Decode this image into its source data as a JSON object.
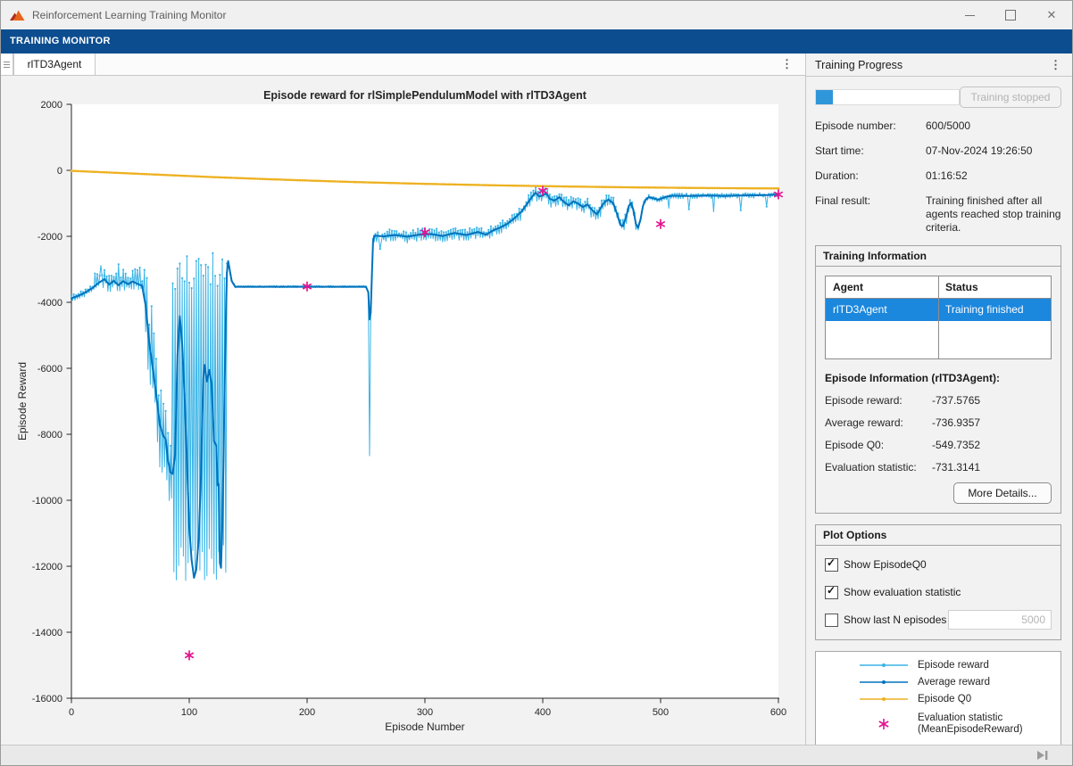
{
  "window": {
    "title": "Reinforcement Learning Training Monitor",
    "close_glyph": "✕"
  },
  "toolstrip": {
    "label": "TRAINING MONITOR"
  },
  "doc_tabs": {
    "active": "rlTD3Agent",
    "menu_icon": "⋮"
  },
  "right_panel": {
    "title": "Training Progress",
    "menu_icon": "⋮",
    "progress": {
      "fraction": 0.12,
      "button_label": "Training stopped"
    },
    "run_info": [
      {
        "label": "Episode number:",
        "value": "600/5000"
      },
      {
        "label": "Start time:",
        "value": "07-Nov-2024 19:26:50"
      },
      {
        "label": "Duration:",
        "value": "01:16:52"
      },
      {
        "label": "Final result:",
        "value": "Training finished after all agents reached stop training criteria."
      }
    ]
  },
  "training_information": {
    "header": "Training Information",
    "table": {
      "columns": [
        "Agent",
        "Status"
      ],
      "rows": [
        {
          "agent": "rlTD3Agent",
          "status": "Training finished",
          "selected": true
        }
      ]
    },
    "episode_info_header": "Episode Information (rlTD3Agent):",
    "episode_info": [
      {
        "label": "Episode reward:",
        "value": "-737.5765"
      },
      {
        "label": "Average reward:",
        "value": "-736.9357"
      },
      {
        "label": "Episode Q0:",
        "value": "-549.7352"
      },
      {
        "label": "Evaluation statistic:",
        "value": "-731.3141"
      }
    ],
    "more_details_label": "More Details..."
  },
  "plot_options": {
    "header": "Plot Options",
    "options": [
      {
        "label": "Show EpisodeQ0",
        "checked": true
      },
      {
        "label": "Show evaluation statistic",
        "checked": true
      },
      {
        "label": "Show last N episodes",
        "checked": false,
        "input_value": "5000"
      }
    ]
  },
  "legend": {
    "entries": [
      {
        "label": "Episode reward",
        "marker": "line-dot",
        "color": "#3ab4e6"
      },
      {
        "label": "Average reward",
        "marker": "line-dot",
        "color": "#0072BD"
      },
      {
        "label": "Episode Q0",
        "marker": "line-dot",
        "color": "#EDB120"
      },
      {
        "label": "Evaluation statistic",
        "label2": "(MeanEpisodeReward)",
        "marker": "asterisk",
        "color": "#e3138f"
      }
    ]
  },
  "chart_data": {
    "type": "line",
    "title": "Episode reward for rlSimplePendulumModel with rlTD3Agent",
    "xlabel": "Episode Number",
    "ylabel": "Episode Reward",
    "xlim": [
      0,
      600
    ],
    "ylim": [
      -16000,
      2000
    ],
    "xticks": [
      0,
      100,
      200,
      300,
      400,
      500,
      600
    ],
    "yticks": [
      2000,
      0,
      -2000,
      -4000,
      -6000,
      -8000,
      -10000,
      -12000,
      -14000,
      -16000
    ],
    "grid": false,
    "legend_position": "right-panel",
    "series": [
      {
        "name": "Episode reward",
        "color": "#3ab4e6",
        "derived_from": "Average reward plus noise",
        "noise_regions": [
          {
            "from": 0,
            "to": 20,
            "up": 110,
            "dn": 130
          },
          {
            "from": 20,
            "to": 62,
            "up": 430,
            "dn": 280
          },
          {
            "from": 62,
            "to": 86,
            "up": 1700,
            "dn": 1300
          },
          {
            "from": 86,
            "to": 133,
            "mode": "band",
            "hi": [
              -2500,
              -3600
            ],
            "lo": [
              -11300,
              -12550
            ]
          },
          {
            "from": 133,
            "to": 251,
            "up": 25,
            "dn": 30
          },
          {
            "from": 255,
            "to": 380,
            "up": 190,
            "dn": 200
          },
          {
            "from": 380,
            "to": 480,
            "up": 200,
            "dn": 260
          },
          {
            "from": 480,
            "to": 600,
            "up": 60,
            "dn": 95
          }
        ],
        "spikes": [
          [
            25,
            -2880
          ],
          [
            40,
            -2850
          ],
          [
            58,
            -2950
          ],
          [
            253,
            -8650
          ],
          [
            262,
            -2380
          ],
          [
            507,
            -1150
          ],
          [
            524,
            -1180
          ],
          [
            545,
            -1260
          ],
          [
            568,
            -1210
          ],
          [
            590,
            -1100
          ]
        ]
      },
      {
        "name": "Average reward",
        "color": "#0072BD",
        "keypoints": [
          [
            0,
            -3880
          ],
          [
            6,
            -3800
          ],
          [
            12,
            -3700
          ],
          [
            18,
            -3560
          ],
          [
            24,
            -3390
          ],
          [
            28,
            -3300
          ],
          [
            32,
            -3460
          ],
          [
            36,
            -3350
          ],
          [
            40,
            -3480
          ],
          [
            44,
            -3360
          ],
          [
            48,
            -3450
          ],
          [
            52,
            -3370
          ],
          [
            56,
            -3440
          ],
          [
            60,
            -3500
          ],
          [
            63,
            -4100
          ],
          [
            66,
            -5200
          ],
          [
            69,
            -6000
          ],
          [
            72,
            -6800
          ],
          [
            75,
            -7700
          ],
          [
            78,
            -8050
          ],
          [
            80,
            -8150
          ],
          [
            82,
            -8800
          ],
          [
            84,
            -9150
          ],
          [
            86,
            -9200
          ],
          [
            88,
            -8600
          ],
          [
            90,
            -5600
          ],
          [
            92,
            -4420
          ],
          [
            94,
            -5300
          ],
          [
            96,
            -6800
          ],
          [
            98,
            -8800
          ],
          [
            100,
            -10800
          ],
          [
            102,
            -11800
          ],
          [
            104,
            -12350
          ],
          [
            106,
            -12100
          ],
          [
            108,
            -11200
          ],
          [
            110,
            -9200
          ],
          [
            111,
            -7500
          ],
          [
            112,
            -6300
          ],
          [
            113,
            -5900
          ],
          [
            115,
            -6400
          ],
          [
            117,
            -6050
          ],
          [
            119,
            -6500
          ],
          [
            121,
            -8200
          ],
          [
            123,
            -8350
          ],
          [
            124,
            -9550
          ],
          [
            125,
            -9500
          ],
          [
            126,
            -11900
          ],
          [
            127,
            -12050
          ],
          [
            128,
            -10800
          ],
          [
            129,
            -8800
          ],
          [
            130,
            -6600
          ],
          [
            131,
            -4600
          ],
          [
            132,
            -3100
          ],
          [
            133,
            -2750
          ],
          [
            134,
            -2950
          ],
          [
            136,
            -3350
          ],
          [
            139,
            -3530
          ],
          [
            250,
            -3530
          ],
          [
            252,
            -3700
          ],
          [
            253,
            -4520
          ],
          [
            254,
            -4300
          ],
          [
            255,
            -3200
          ],
          [
            256,
            -2150
          ],
          [
            257,
            -1980
          ],
          [
            265,
            -2000
          ],
          [
            275,
            -1960
          ],
          [
            285,
            -2010
          ],
          [
            295,
            -1950
          ],
          [
            305,
            -1930
          ],
          [
            315,
            -1990
          ],
          [
            325,
            -1900
          ],
          [
            335,
            -1960
          ],
          [
            345,
            -1870
          ],
          [
            352,
            -1950
          ],
          [
            358,
            -1820
          ],
          [
            364,
            -1730
          ],
          [
            370,
            -1620
          ],
          [
            376,
            -1450
          ],
          [
            382,
            -1250
          ],
          [
            387,
            -1000
          ],
          [
            391,
            -800
          ],
          [
            394,
            -680
          ],
          [
            397,
            -790
          ],
          [
            400,
            -760
          ],
          [
            403,
            -690
          ],
          [
            406,
            -860
          ],
          [
            410,
            -920
          ],
          [
            414,
            -810
          ],
          [
            418,
            -960
          ],
          [
            422,
            -1060
          ],
          [
            426,
            -940
          ],
          [
            430,
            -1010
          ],
          [
            434,
            -1110
          ],
          [
            438,
            -1040
          ],
          [
            442,
            -1210
          ],
          [
            446,
            -1330
          ],
          [
            450,
            -1090
          ],
          [
            453,
            -940
          ],
          [
            456,
            -890
          ],
          [
            460,
            -1010
          ],
          [
            463,
            -1320
          ],
          [
            466,
            -1660
          ],
          [
            468,
            -1690
          ],
          [
            471,
            -1390
          ],
          [
            473,
            -1080
          ],
          [
            475,
            -990
          ],
          [
            477,
            -1210
          ],
          [
            479,
            -1620
          ],
          [
            481,
            -1740
          ],
          [
            483,
            -1480
          ],
          [
            485,
            -1090
          ],
          [
            487,
            -900
          ],
          [
            490,
            -810
          ],
          [
            494,
            -850
          ],
          [
            498,
            -890
          ],
          [
            501,
            -850
          ],
          [
            505,
            -800
          ],
          [
            510,
            -770
          ],
          [
            525,
            -775
          ],
          [
            540,
            -765
          ],
          [
            555,
            -775
          ],
          [
            570,
            -760
          ],
          [
            585,
            -755
          ],
          [
            600,
            -736.9
          ]
        ]
      },
      {
        "name": "Episode Q0",
        "color": "#EDB120",
        "keypoints": [
          [
            0,
            -15
          ],
          [
            60,
            -110
          ],
          [
            120,
            -205
          ],
          [
            180,
            -285
          ],
          [
            240,
            -355
          ],
          [
            300,
            -410
          ],
          [
            360,
            -455
          ],
          [
            420,
            -490
          ],
          [
            480,
            -518
          ],
          [
            540,
            -537
          ],
          [
            600,
            -549.7
          ]
        ]
      },
      {
        "name": "Evaluation statistic (MeanEpisodeReward)",
        "color": "#e3138f",
        "marker": "asterisk",
        "points": [
          [
            100,
            -14700
          ],
          [
            200,
            -3520
          ],
          [
            300,
            -1880
          ],
          [
            400,
            -620
          ],
          [
            500,
            -1630
          ],
          [
            600,
            -731.3
          ]
        ]
      }
    ]
  }
}
